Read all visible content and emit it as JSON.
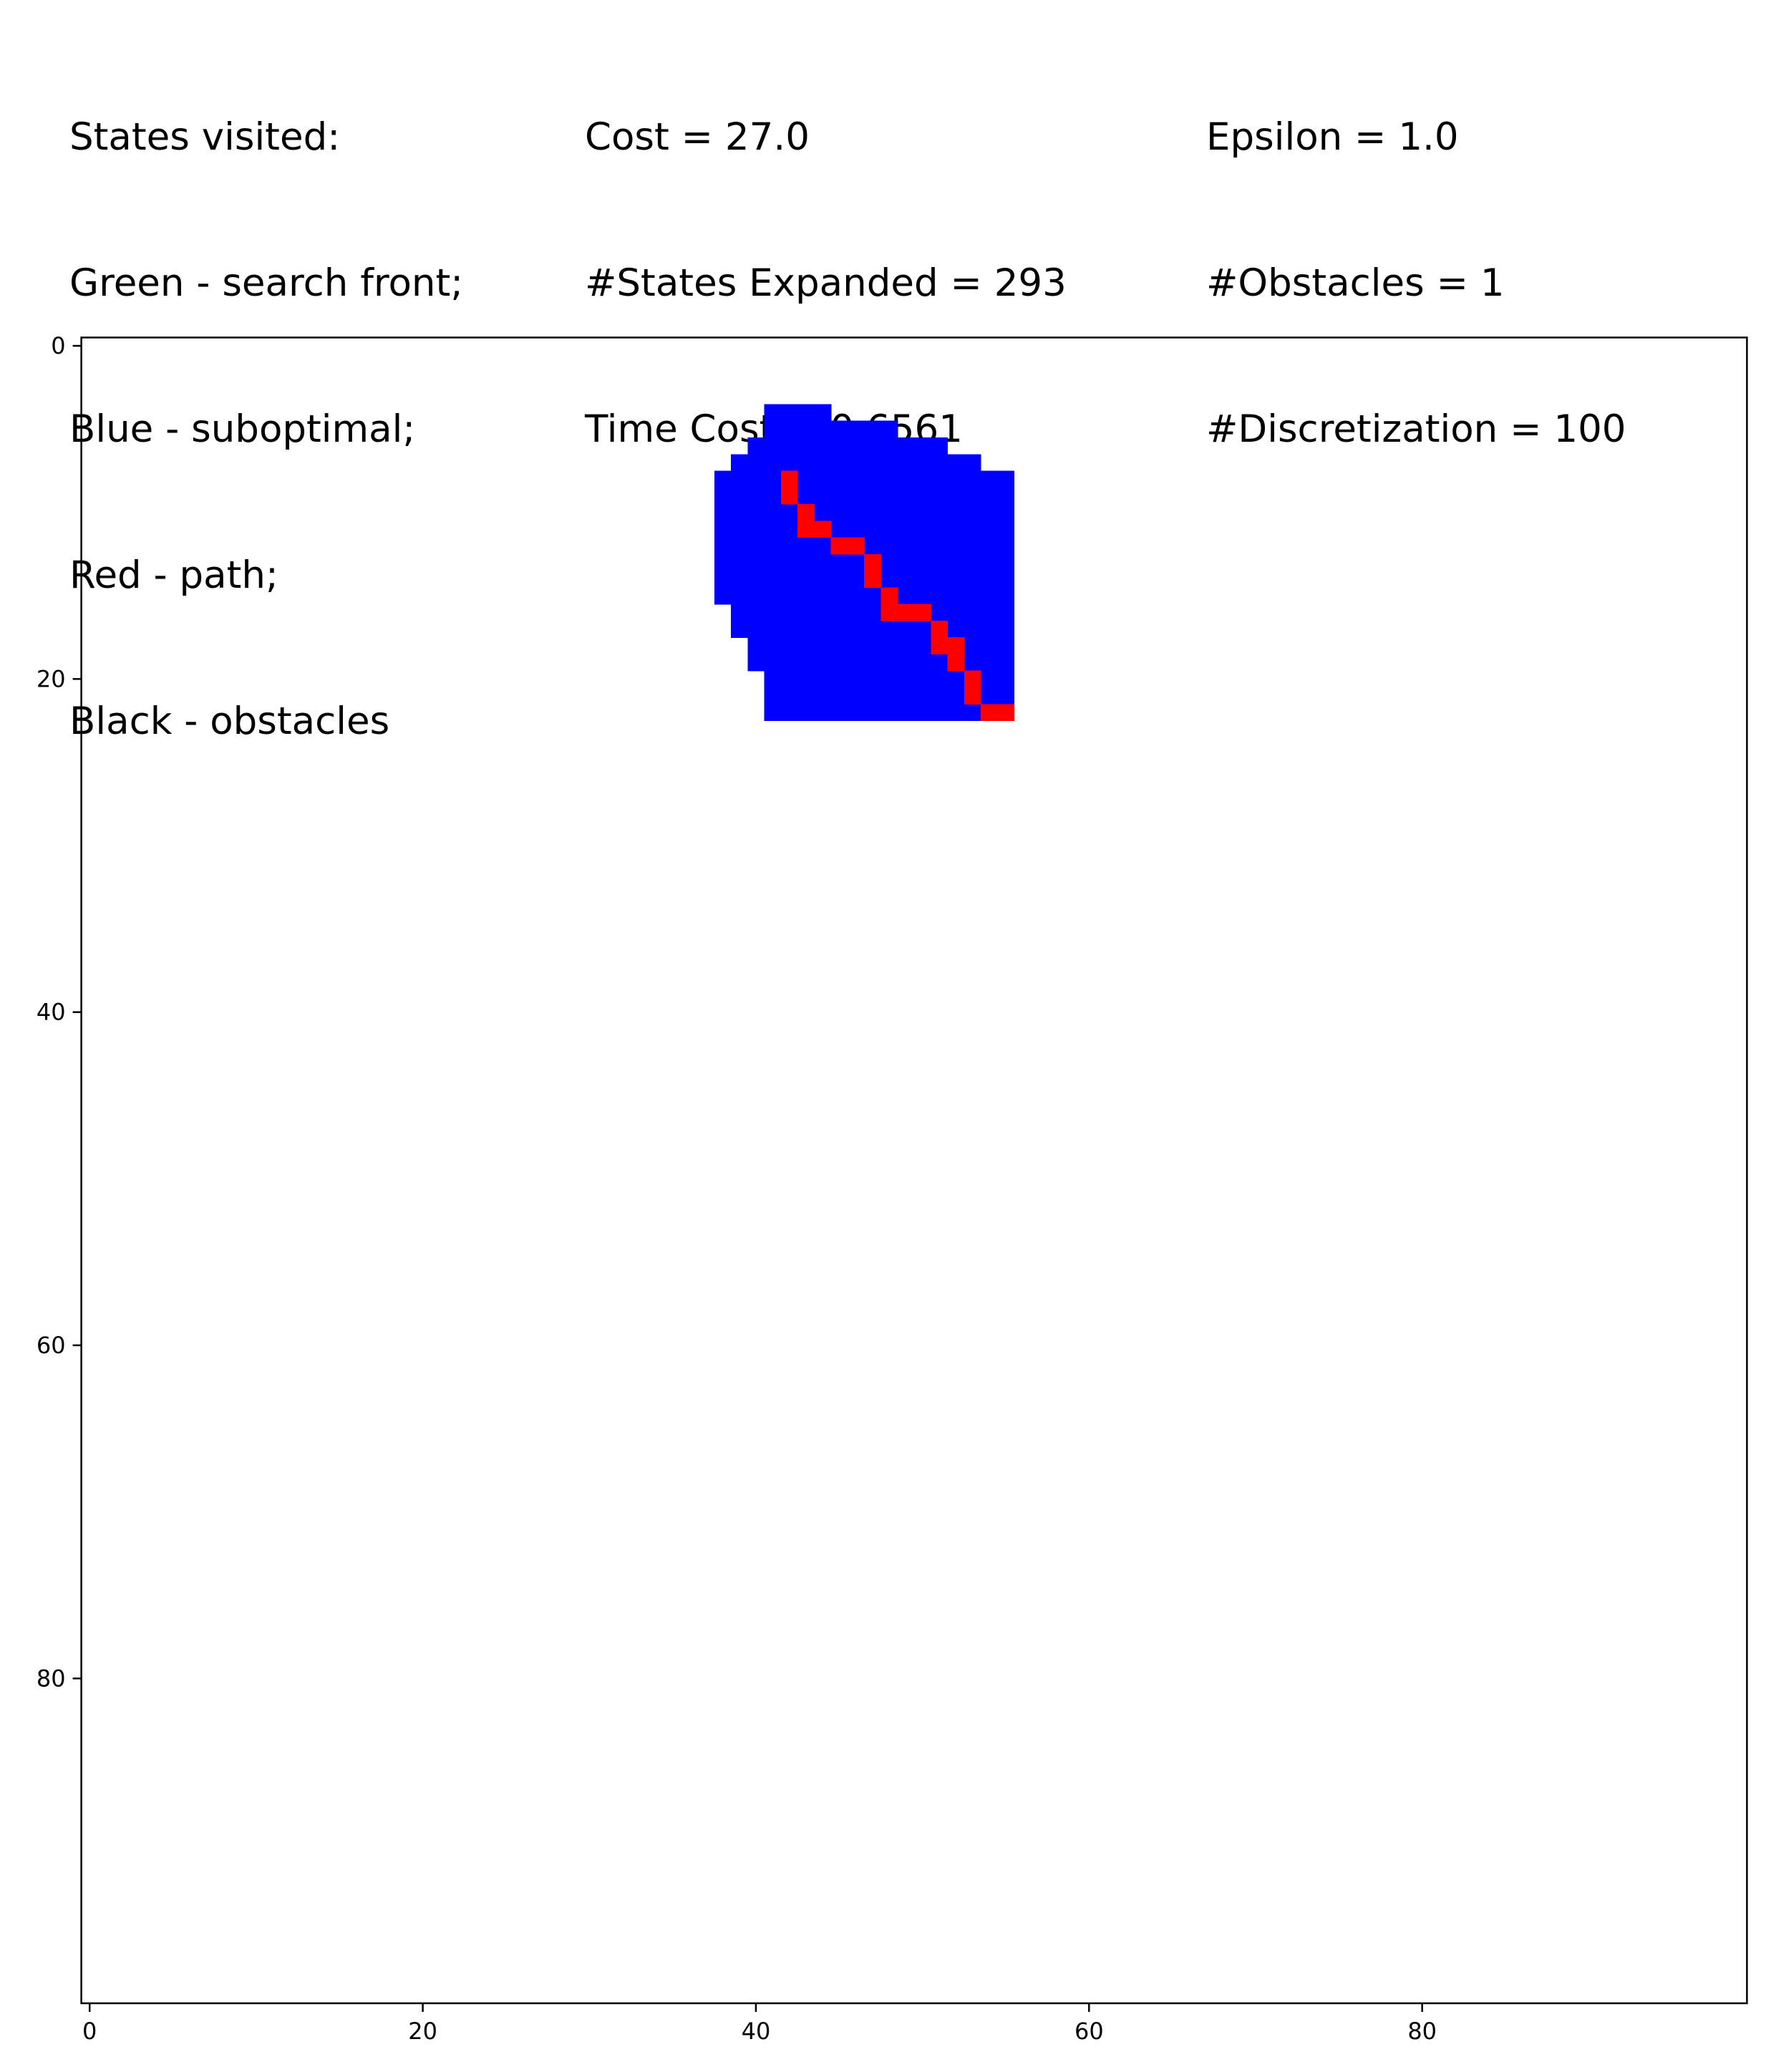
{
  "header": {
    "legend_lines": [
      "States visited:",
      "Green - search front;",
      "Blue - suboptimal;",
      "Red - path;",
      "Black - obstacles"
    ],
    "stats_lines": [
      "Cost = 27.0",
      "#States Expanded = 293",
      "Time Cost = 0.6561"
    ],
    "param_lines": [
      "Epsilon = 1.0",
      "#Obstacles = 1",
      "#Discretization = 100"
    ]
  },
  "chart_data": {
    "type": "heatmap",
    "title": "",
    "xlabel": "",
    "ylabel": "",
    "grid": false,
    "xlim": [
      -0.5,
      99.5
    ],
    "ylim": [
      99.5,
      -0.5
    ],
    "y_inverted": true,
    "xticks": [
      0,
      20,
      40,
      60,
      80
    ],
    "yticks": [
      0,
      20,
      40,
      60,
      80
    ],
    "colors": {
      "background": "#ffffff",
      "suboptimal": "#0000ff",
      "path": "#ff0000",
      "search_front": "#00ff00",
      "obstacle": "#000000"
    },
    "suboptimal_region_rows": [
      {
        "y": 4,
        "x": [
          41,
          44
        ]
      },
      {
        "y": 5,
        "x": [
          41,
          48
        ]
      },
      {
        "y": 6,
        "x": [
          40,
          51
        ]
      },
      {
        "y": 7,
        "x": [
          39,
          53
        ]
      },
      {
        "y": 8,
        "x": [
          38,
          55
        ]
      },
      {
        "y": 9,
        "x": [
          38,
          55
        ]
      },
      {
        "y": 10,
        "x": [
          38,
          55
        ]
      },
      {
        "y": 11,
        "x": [
          38,
          55
        ]
      },
      {
        "y": 12,
        "x": [
          38,
          55
        ]
      },
      {
        "y": 13,
        "x": [
          38,
          55
        ]
      },
      {
        "y": 14,
        "x": [
          38,
          55
        ]
      },
      {
        "y": 15,
        "x": [
          38,
          55
        ]
      },
      {
        "y": 16,
        "x": [
          39,
          55
        ]
      },
      {
        "y": 17,
        "x": [
          39,
          55
        ]
      },
      {
        "y": 18,
        "x": [
          40,
          55
        ]
      },
      {
        "y": 19,
        "x": [
          40,
          55
        ]
      },
      {
        "y": 20,
        "x": [
          41,
          55
        ]
      },
      {
        "y": 21,
        "x": [
          41,
          55
        ]
      },
      {
        "y": 22,
        "x": [
          41,
          53
        ]
      }
    ],
    "path_cells": [
      [
        42,
        8
      ],
      [
        42,
        9
      ],
      [
        43,
        10
      ],
      [
        43,
        11
      ],
      [
        44,
        11
      ],
      [
        45,
        12
      ],
      [
        46,
        12
      ],
      [
        47,
        13
      ],
      [
        47,
        14
      ],
      [
        48,
        15
      ],
      [
        48,
        16
      ],
      [
        49,
        16
      ],
      [
        50,
        16
      ],
      [
        51,
        17
      ],
      [
        51,
        18
      ],
      [
        52,
        18
      ],
      [
        52,
        19
      ],
      [
        53,
        20
      ],
      [
        53,
        21
      ],
      [
        54,
        22
      ],
      [
        55,
        22
      ]
    ]
  }
}
